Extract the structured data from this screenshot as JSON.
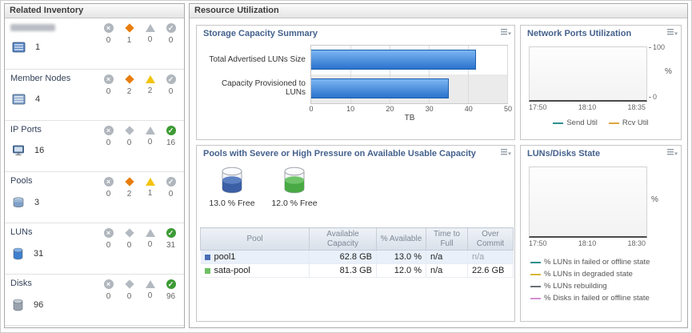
{
  "related_inventory": {
    "title": "Related Inventory",
    "status_types": [
      "fatal",
      "critical",
      "warning",
      "normal"
    ],
    "rows": [
      {
        "name": "",
        "redacted": true,
        "icon": "san-array",
        "count": "1",
        "statuses": [
          "0",
          "1",
          "0",
          "0"
        ]
      },
      {
        "name": "Member Nodes",
        "redacted": false,
        "icon": "member-node",
        "count": "4",
        "statuses": [
          "0",
          "2",
          "2",
          "0"
        ]
      },
      {
        "name": "IP Ports",
        "redacted": false,
        "icon": "ip-port",
        "count": "16",
        "statuses": [
          "0",
          "0",
          "0",
          "16"
        ]
      },
      {
        "name": "Pools",
        "redacted": false,
        "icon": "pool",
        "count": "3",
        "statuses": [
          "0",
          "2",
          "1",
          "0"
        ]
      },
      {
        "name": "LUNs",
        "redacted": false,
        "icon": "lun",
        "count": "31",
        "statuses": [
          "0",
          "0",
          "0",
          "31"
        ]
      },
      {
        "name": "Disks",
        "redacted": false,
        "icon": "disk",
        "count": "96",
        "statuses": [
          "0",
          "0",
          "0",
          "96"
        ]
      }
    ]
  },
  "resource_utilization": {
    "title": "Resource Utilization",
    "storage_capacity": {
      "title": "Storage Capacity Summary",
      "chart_data": {
        "type": "bar",
        "orientation": "horizontal",
        "categories": [
          "Total Advertised LUNs Size",
          "Capacity Provisioned to LUNs"
        ],
        "values": [
          42,
          35
        ],
        "xlabel": "TB",
        "xlim": [
          0,
          50
        ],
        "xticks": [
          0,
          10,
          20,
          30,
          40,
          50
        ],
        "bar_color": "#2a72cd"
      }
    },
    "network_ports": {
      "title": "Network Ports Utilization",
      "chart_data": {
        "type": "line",
        "x_ticks": [
          "17:50",
          "18:10",
          "18:35"
        ],
        "ylabel": "%",
        "yticks": [
          0,
          100
        ],
        "ylim": [
          0,
          100
        ],
        "series": [
          {
            "name": "Send Util",
            "color": "#2e8f8f",
            "values": []
          },
          {
            "name": "Rcv Util",
            "color": "#dfa63c",
            "values": []
          }
        ]
      }
    },
    "pools_pressure": {
      "title": "Pools with Severe or High Pressure on Available Usable Capacity",
      "gauges": [
        {
          "label": "13.0 % Free",
          "color": "#3b5fa5",
          "color_top": "#5d80c2"
        },
        {
          "label": "12.0 % Free",
          "color": "#49a944",
          "color_top": "#6fc46a"
        }
      ],
      "table": {
        "columns": [
          "Pool",
          "Available Capacity",
          "% Available",
          "Time to Full",
          "Over Commit"
        ],
        "rows": [
          {
            "bullet_color": "#4a6fb5",
            "pool": "pool1",
            "available_capacity": "62.8 GB",
            "pct_available": "13.0 %",
            "time_to_full": "n/a",
            "over_commit": "n/a",
            "over_commit_muted": true
          },
          {
            "bullet_color": "#6fbf63",
            "pool": "sata-pool",
            "available_capacity": "81.3 GB",
            "pct_available": "12.0 %",
            "time_to_full": "n/a",
            "over_commit": "22.6 GB",
            "over_commit_muted": false
          }
        ]
      }
    },
    "luns_disks": {
      "title": "LUNs/Disks State",
      "chart_data": {
        "type": "line",
        "x_ticks": [
          "17:50",
          "18:10",
          "18:30"
        ],
        "ylabel": "%",
        "series": [
          {
            "name": "% LUNs in failed or offline state",
            "color": "#2e8f8f",
            "values": []
          },
          {
            "name": "% LUNs in degraded state",
            "color": "#d8b83a",
            "values": []
          },
          {
            "name": "% LUNs rebuilding",
            "color": "#6b7076",
            "values": []
          },
          {
            "name": "% Disks in failed or offline state",
            "color": "#d48fd0",
            "values": []
          }
        ]
      }
    }
  }
}
